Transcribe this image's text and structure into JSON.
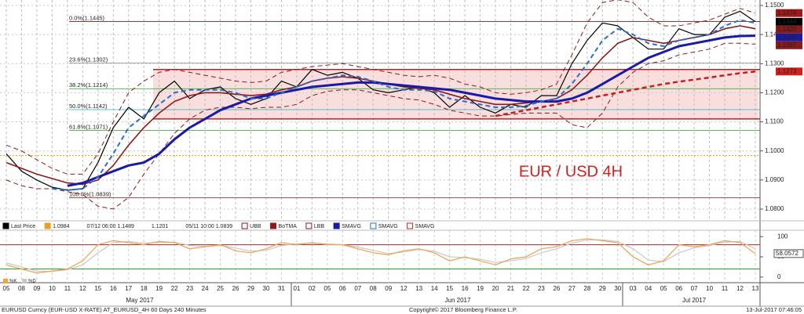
{
  "chart_data": {
    "type": "line",
    "title": "EUR / USD 4H",
    "categories": [
      "05",
      "08",
      "09",
      "10",
      "11",
      "12",
      "15",
      "16",
      "17",
      "18",
      "19",
      "22",
      "23",
      "24",
      "25",
      "26",
      "29",
      "30",
      "31",
      "01",
      "02",
      "05",
      "06",
      "07",
      "08",
      "09",
      "12",
      "13",
      "14",
      "15",
      "16",
      "19",
      "20",
      "21",
      "22",
      "23",
      "26",
      "27",
      "28",
      "29",
      "30",
      "03",
      "04",
      "05",
      "06",
      "07",
      "10",
      "11",
      "12",
      "13"
    ],
    "months": [
      "May 2017",
      "Jun 2017",
      "Jul 2017"
    ],
    "ylim": [
      1.0775,
      1.1525
    ],
    "yticks": [
      {
        "value": 1.08,
        "label": "1.0800"
      },
      {
        "value": 1.09,
        "label": "1.0900"
      },
      {
        "value": 1.1,
        "label": "1.1000"
      },
      {
        "value": 1.11,
        "label": "1.1100"
      },
      {
        "value": 1.12,
        "label": "1.1200"
      },
      {
        "value": 1.13,
        "label": "1.1300"
      },
      {
        "value": 1.14,
        "label": "1.1400"
      },
      {
        "value": 1.15,
        "label": "1.1500"
      }
    ],
    "grid": true,
    "series": [
      {
        "name": "Last Price",
        "color": "#000000",
        "style": "solid",
        "width": 1.2,
        "values": [
          1.099,
          1.093,
          1.09,
          1.0875,
          1.0865,
          1.087,
          1.096,
          1.108,
          1.115,
          1.111,
          1.12,
          1.124,
          1.118,
          1.121,
          1.122,
          1.118,
          1.116,
          1.118,
          1.124,
          1.122,
          1.128,
          1.126,
          1.127,
          1.125,
          1.121,
          1.12,
          1.121,
          1.122,
          1.12,
          1.115,
          1.119,
          1.115,
          1.113,
          1.116,
          1.115,
          1.119,
          1.119,
          1.13,
          1.138,
          1.144,
          1.143,
          1.139,
          1.135,
          1.135,
          1.142,
          1.14,
          1.14,
          1.146,
          1.148,
          1.1444
        ]
      },
      {
        "name": "UBB",
        "color": "#8b1a1a",
        "style": "dashed",
        "width": 1,
        "values": [
          1.102,
          1.1,
          1.097,
          1.094,
          1.092,
          1.092,
          1.099,
          1.11,
          1.12,
          1.124,
          1.127,
          1.128,
          1.127,
          1.126,
          1.125,
          1.124,
          1.1235,
          1.124,
          1.127,
          1.128,
          1.129,
          1.1295,
          1.13,
          1.129,
          1.128,
          1.127,
          1.126,
          1.1255,
          1.126,
          1.125,
          1.123,
          1.122,
          1.12,
          1.1195,
          1.12,
          1.121,
          1.123,
          1.133,
          1.144,
          1.151,
          1.152,
          1.151,
          1.146,
          1.143,
          1.143,
          1.144,
          1.145,
          1.147,
          1.149,
          1.1474
        ]
      },
      {
        "name": "BoTMA",
        "color": "#8b1a1a",
        "style": "solid",
        "width": 1.6,
        "values": [
          1.096,
          1.094,
          1.092,
          1.0905,
          1.089,
          1.0885,
          1.09,
          1.095,
          1.102,
          1.108,
          1.113,
          1.117,
          1.119,
          1.12,
          1.12,
          1.1195,
          1.119,
          1.1195,
          1.121,
          1.122,
          1.124,
          1.125,
          1.1255,
          1.125,
          1.124,
          1.123,
          1.122,
          1.1215,
          1.121,
          1.1195,
          1.118,
          1.117,
          1.116,
          1.116,
          1.1165,
          1.117,
          1.118,
          1.121,
          1.126,
          1.132,
          1.137,
          1.139,
          1.138,
          1.137,
          1.138,
          1.139,
          1.14,
          1.142,
          1.143,
          1.142
        ]
      },
      {
        "name": "LBB",
        "color": "#8b1a1a",
        "style": "dashed",
        "width": 1,
        "values": [
          1.09,
          1.088,
          1.087,
          1.087,
          1.086,
          1.085,
          1.081,
          1.08,
          1.084,
          1.092,
          1.099,
          1.106,
          1.111,
          1.114,
          1.115,
          1.115,
          1.1145,
          1.115,
          1.115,
          1.116,
          1.119,
          1.1205,
          1.121,
          1.121,
          1.12,
          1.119,
          1.118,
          1.1175,
          1.116,
          1.114,
          1.113,
          1.112,
          1.112,
          1.1125,
          1.113,
          1.113,
          1.113,
          1.109,
          1.108,
          1.113,
          1.122,
          1.127,
          1.13,
          1.131,
          1.133,
          1.134,
          1.135,
          1.137,
          1.137,
          1.1367
        ]
      },
      {
        "name": "SMAVG",
        "color": "#1a1aa8",
        "style": "solid",
        "width": 3,
        "values": [
          null,
          null,
          null,
          null,
          1.088,
          1.089,
          1.091,
          1.093,
          1.095,
          1.096,
          1.099,
          1.104,
          1.108,
          1.111,
          1.114,
          1.116,
          1.118,
          1.119,
          1.12,
          1.121,
          1.122,
          1.1225,
          1.123,
          1.1235,
          1.1235,
          1.123,
          1.1225,
          1.122,
          1.1215,
          1.121,
          1.12,
          1.119,
          1.118,
          1.1175,
          1.117,
          1.117,
          1.117,
          1.118,
          1.12,
          1.123,
          1.126,
          1.129,
          1.132,
          1.134,
          1.136,
          1.137,
          1.138,
          1.139,
          1.1395,
          1.1396
        ]
      },
      {
        "name": "SMAVG",
        "color": "#2a6fc9",
        "style": "dashed",
        "width": 2,
        "values": [
          null,
          null,
          null,
          1.087,
          1.0865,
          1.087,
          1.091,
          1.099,
          1.108,
          1.112,
          1.116,
          1.12,
          1.121,
          1.121,
          1.121,
          1.12,
          1.118,
          1.118,
          1.12,
          1.122,
          1.124,
          1.125,
          1.126,
          1.1255,
          1.124,
          1.122,
          1.121,
          1.121,
          1.1205,
          1.118,
          1.117,
          1.116,
          1.115,
          1.115,
          1.1155,
          1.117,
          1.118,
          1.123,
          1.13,
          1.138,
          1.142,
          1.14,
          1.137,
          1.136,
          1.138,
          1.139,
          1.14,
          1.143,
          1.145,
          1.144
        ]
      },
      {
        "name": "SMAVG",
        "color": "#c62020",
        "style": "dashed",
        "width": 2.5,
        "values": [
          null,
          null,
          null,
          null,
          null,
          null,
          null,
          null,
          null,
          null,
          null,
          null,
          null,
          null,
          null,
          null,
          null,
          null,
          null,
          null,
          null,
          null,
          null,
          null,
          null,
          null,
          null,
          null,
          null,
          null,
          null,
          null,
          1.112,
          1.113,
          1.114,
          1.115,
          1.116,
          1.117,
          1.118,
          1.119,
          1.12,
          1.121,
          1.122,
          1.123,
          1.1238,
          1.1245,
          1.1252,
          1.126,
          1.1267,
          1.1273
        ]
      }
    ],
    "legend_info": [
      {
        "label": "1.0984",
        "color": "#e8a020"
      },
      {
        "label": "07/12 06:00 1.1489",
        "color": "#ffffff"
      },
      {
        "label": "1.1201",
        "color": "#ffffff"
      },
      {
        "label": "05/11 10:00 1.0839",
        "color": "#ffffff"
      }
    ],
    "zone": [
      1.111,
      1.128
    ],
    "zone_color": "#f7d0d0",
    "reference_line": {
      "value": 1.0984,
      "color": "#c9a400"
    },
    "fib_levels": [
      {
        "value": 1.1445,
        "label": "0.0%(1.1445)",
        "color": "#8b1a1a"
      },
      {
        "value": 1.1302,
        "label": "23.6%(1.1302)",
        "color": "#999999"
      },
      {
        "value": 1.1214,
        "label": "38.2%(1.1214)",
        "color": "#2e9e2e"
      },
      {
        "value": 1.1142,
        "label": "50.0%(1.1142)",
        "color": "#28b4c8"
      },
      {
        "value": 1.1071,
        "label": "61.8%(1.1071)",
        "color": "#2e9e2e"
      },
      {
        "value": 1.0839,
        "label": "100.0%(1.0839)",
        "color": "#8b1a1a"
      }
    ],
    "price_tags": [
      {
        "value": 1.1474,
        "label": "1.1474",
        "color": "#a01818"
      },
      {
        "value": 1.1444,
        "label": "1.1444",
        "color": "#000000"
      },
      {
        "value": 1.142,
        "label": "1.1420",
        "color": "#8b1a1a"
      },
      {
        "value": 1.1396,
        "label": "1.1396",
        "color": "#1a1aa8"
      },
      {
        "value": 1.1367,
        "label": "1.1367",
        "color": "#8b1a1a"
      },
      {
        "value": 1.1273,
        "label": "1.1273",
        "color": "#d02020"
      }
    ],
    "oscillator": {
      "ylim": [
        -12,
        112
      ],
      "yticks": [
        0,
        50,
        100
      ],
      "levels": [
        {
          "value": 80,
          "color": "#c03030"
        },
        {
          "value": 20,
          "color": "#2e9e2e"
        }
      ],
      "series": [
        {
          "name": "%K",
          "color": "#f0a050",
          "values": [
            30,
            20,
            10,
            15,
            20,
            40,
            80,
            90,
            85,
            80,
            88,
            85,
            70,
            75,
            80,
            65,
            60,
            70,
            85,
            80,
            85,
            80,
            80,
            70,
            60,
            55,
            65,
            70,
            60,
            40,
            50,
            40,
            30,
            45,
            50,
            70,
            75,
            90,
            95,
            90,
            85,
            50,
            30,
            40,
            80,
            75,
            80,
            90,
            85,
            58.0572
          ]
        },
        {
          "name": "%D",
          "color": "#c8c8c8",
          "values": [
            35,
            25,
            15,
            14,
            18,
            30,
            60,
            85,
            88,
            84,
            85,
            86,
            78,
            76,
            78,
            72,
            64,
            66,
            78,
            82,
            84,
            82,
            80,
            74,
            66,
            58,
            62,
            68,
            64,
            50,
            48,
            44,
            36,
            40,
            46,
            60,
            70,
            84,
            92,
            92,
            88,
            70,
            42,
            38,
            60,
            72,
            78,
            86,
            88,
            70
          ]
        }
      ]
    },
    "footer": {
      "left": "EURUSD Curncy (EUR-USD X-RATE) AT_EURUSD_4H 60 Days 240 Minutes",
      "center": "Copyright© 2017 Bloomberg Finance L.P.",
      "right": "13-Jul-2017 07:46:05"
    }
  }
}
